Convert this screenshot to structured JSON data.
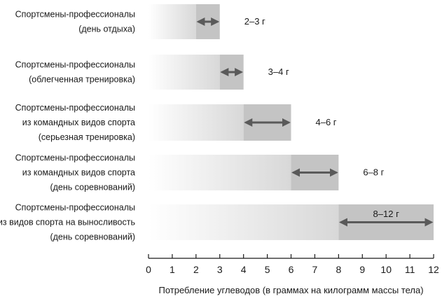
{
  "chart_data": {
    "type": "bar",
    "xlabel": "Потребление углеводов (в граммах на килограмм массы тела)",
    "xlim": [
      0,
      12
    ],
    "xticks": [
      "0",
      "1",
      "2",
      "3",
      "4",
      "5",
      "6",
      "7",
      "8",
      "9",
      "10",
      "11",
      "12"
    ],
    "grid": false,
    "legend": "none",
    "colors": {
      "gradient_start": "#ffffff",
      "gradient_end": "#d8d8d8",
      "range_box": "#c4c4c4",
      "arrow": "#5a5a5a"
    },
    "categories": [
      {
        "lines": [
          "Спортсмены-профессионалы",
          "(день отдыха)"
        ],
        "range": [
          2,
          3
        ],
        "range_label": "2–3 г"
      },
      {
        "lines": [
          "Спортсмены-профессионалы",
          "(облегченная тренировка)"
        ],
        "range": [
          3,
          4
        ],
        "range_label": "3–4 г"
      },
      {
        "lines": [
          "Спортсмены-профессионалы",
          "из командных видов спорта",
          "(серьезная тренировка)"
        ],
        "range": [
          4,
          6
        ],
        "range_label": "4–6 г"
      },
      {
        "lines": [
          "Спортсмены-профессионалы",
          "из командных видов спорта",
          "(день соревнований)"
        ],
        "range": [
          6,
          8
        ],
        "range_label": "6–8 г"
      },
      {
        "lines": [
          "Спортсмены-профессионалы",
          "из видов спорта на выносливость",
          "(день соревнований)"
        ],
        "range": [
          8,
          12
        ],
        "range_label": "8–12 г"
      }
    ]
  }
}
